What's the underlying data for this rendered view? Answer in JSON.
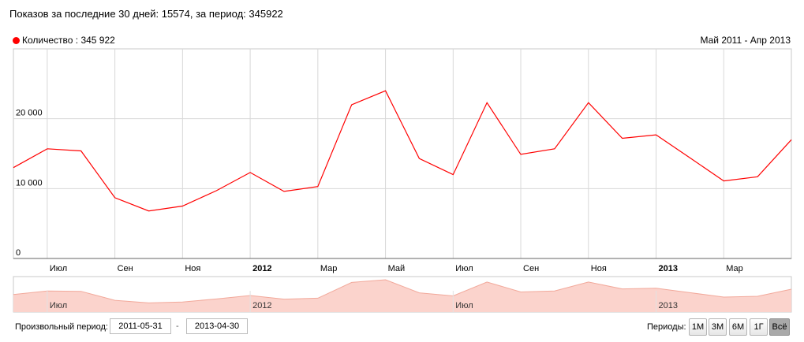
{
  "summary": "Показов за последние 30 дней: 15574, за период: 345922",
  "legend": {
    "label": "Количество : 345 922",
    "color": "#ff0000"
  },
  "range_label": "Май 2011 - Апр 2013",
  "footer": {
    "period_label": "Произвольный период:",
    "date_from": "2011-05-31",
    "date_to": "2013-04-30",
    "dash": "-",
    "periods_label": "Периоды:",
    "buttons": [
      {
        "label": "1М",
        "active": false
      },
      {
        "label": "3М",
        "active": false
      },
      {
        "label": "6М",
        "active": false
      },
      {
        "label": "1Г",
        "active": false
      },
      {
        "label": "Всё",
        "active": true
      }
    ]
  },
  "chart_data": {
    "type": "line",
    "x": [
      "2011-05",
      "2011-06",
      "2011-07",
      "2011-08",
      "2011-09",
      "2011-10",
      "2011-11",
      "2011-12",
      "2012-01",
      "2012-02",
      "2012-03",
      "2012-04",
      "2012-05",
      "2012-06",
      "2012-07",
      "2012-08",
      "2012-09",
      "2012-10",
      "2012-11",
      "2012-12",
      "2013-01",
      "2013-02",
      "2013-03",
      "2013-04"
    ],
    "series": [
      {
        "color": "#ff0000",
        "values": [
          13000,
          15700,
          15400,
          8700,
          6800,
          7500,
          9700,
          12300,
          9600,
          10300,
          22000,
          24000,
          14300,
          12000,
          22300,
          14900,
          15700,
          22300,
          17200,
          17700,
          14400,
          11100,
          11700,
          17000
        ]
      }
    ],
    "yticks": [
      {
        "value": 0,
        "label": "0"
      },
      {
        "value": 10000,
        "label": "10 000"
      },
      {
        "value": 20000,
        "label": "20 000"
      }
    ],
    "ylim": [
      0,
      30000
    ],
    "xticks": [
      {
        "label": "Июл",
        "bold": false
      },
      {
        "label": "Сен",
        "bold": false
      },
      {
        "label": "Ноя",
        "bold": false
      },
      {
        "label": "2012",
        "bold": true
      },
      {
        "label": "Мар",
        "bold": false
      },
      {
        "label": "Май",
        "bold": false
      },
      {
        "label": "Июл",
        "bold": false
      },
      {
        "label": "Сен",
        "bold": false
      },
      {
        "label": "Ноя",
        "bold": false
      },
      {
        "label": "2013",
        "bold": true
      },
      {
        "label": "Мар",
        "bold": false
      }
    ],
    "navigator_labels": [
      "Июл",
      "2012",
      "Июл",
      "2013"
    ],
    "grid": true
  }
}
